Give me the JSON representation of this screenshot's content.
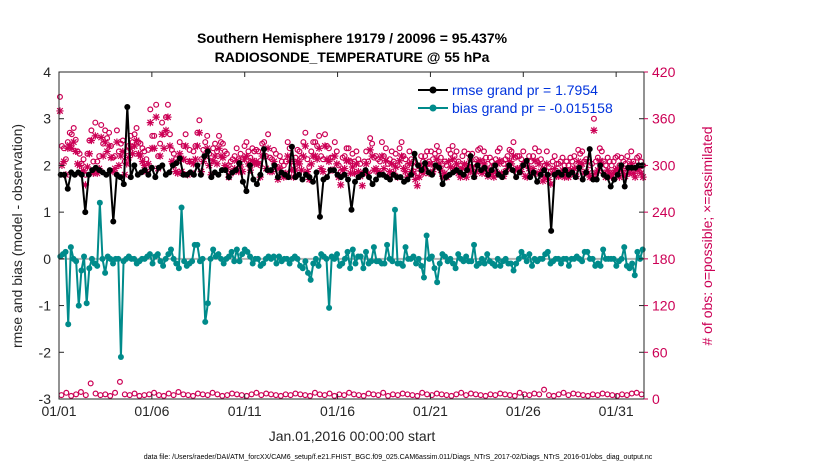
{
  "chart_data": {
    "type": "line",
    "title": "Southern Hemisphere 19179 / 20096 = 95.437%",
    "subtitle": "RADIOSONDE_TEMPERATURE @ 55 hPa",
    "xlabel": "Jan.01,2016 00:00:00 start",
    "ylabel": "rmse and bias (model - observation)",
    "ylabel_right": "# of obs: o=possible; ×=assimilated",
    "ylim": [
      -3,
      4
    ],
    "ylim_right": [
      0,
      420
    ],
    "xlim": [
      0,
      31.5
    ],
    "x_ticks": [
      0,
      5,
      10,
      15,
      20,
      25,
      30
    ],
    "x_tick_labels": [
      "01/01",
      "01/06",
      "01/11",
      "01/16",
      "01/21",
      "01/26",
      "01/31"
    ],
    "y_tick_labels": [
      "-3",
      "-2",
      "-1",
      "0",
      "1",
      "2",
      "3",
      "4"
    ],
    "y_right_tick_labels": [
      "0",
      "60",
      "120",
      "180",
      "240",
      "300",
      "360",
      "420"
    ],
    "legend_position": "top-right",
    "footer": "data file: /Users/raeder/DAI/ATM_forcXX/CAM6_setup/f.e21.FHIST_BGC.f09_025.CAM6assim.011/Diags_NTrS_2017-02/Diags_NTrS_2016-01/obs_diag_output.nc",
    "colors": {
      "rmse": "#000000",
      "bias": "#008b8b",
      "obs": "#cc0055",
      "zero": "#b3b3b3",
      "legend_text": "#0033dd"
    },
    "series": [
      {
        "name": "rmse grand pr = 1.7954",
        "axis": "left",
        "values": [
          1.8,
          1.8,
          1.5,
          1.85,
          1.8,
          1.85,
          1.8,
          1.0,
          1.8,
          1.9,
          1.95,
          1.9,
          1.85,
          1.8,
          1.9,
          0.8,
          1.8,
          1.75,
          1.6,
          3.25,
          1.75,
          2.0,
          1.8,
          1.85,
          1.9,
          1.8,
          1.95,
          1.75,
          1.95,
          2.0,
          1.8,
          1.85,
          2.0,
          2.05,
          2.15,
          1.8,
          1.8,
          1.85,
          1.8,
          2.0,
          1.8,
          2.2,
          2.3,
          1.75,
          1.85,
          1.8,
          1.9,
          1.9,
          1.75,
          1.85,
          1.9,
          2.05,
          1.65,
          1.45,
          2.0,
          1.7,
          1.6,
          1.8,
          2.35,
          1.9,
          1.9,
          2.0,
          1.75,
          1.85,
          1.8,
          1.75,
          2.4,
          1.75,
          1.8,
          1.7,
          1.8,
          1.75,
          1.65,
          1.85,
          0.9,
          1.7,
          1.75,
          1.9,
          1.9,
          1.8,
          1.75,
          1.8,
          1.7,
          1.05,
          1.65,
          1.75,
          1.8,
          1.9,
          1.75,
          1.6,
          1.7,
          1.8,
          1.8,
          1.75,
          1.7,
          1.8,
          1.75,
          1.75,
          1.65,
          1.7,
          1.8,
          2.25,
          2.0,
          1.9,
          2.05,
          1.85,
          1.8,
          2.0,
          1.95,
          1.6,
          1.75,
          1.8,
          1.85,
          1.9,
          1.85,
          1.8,
          1.9,
          2.2,
          1.75,
          2.0,
          1.9,
          1.95,
          1.8,
          1.9,
          2.0,
          1.8,
          1.75,
          1.85,
          2.0,
          1.9,
          1.75,
          1.85,
          2.0,
          2.1,
          1.75,
          1.85,
          1.65,
          1.8,
          1.9,
          1.8,
          0.6,
          1.8,
          1.85,
          1.8,
          1.9,
          1.8,
          1.85,
          1.75,
          1.95,
          1.7,
          1.85,
          2.35,
          1.7,
          1.7,
          2.0,
          1.8,
          1.75,
          1.55,
          1.7,
          1.8,
          2.0,
          1.55,
          1.95,
          1.95,
          1.95,
          2.0,
          2.0
        ]
      },
      {
        "name": "bias grand pr = -0.015158",
        "axis": "left",
        "values": [
          0.05,
          0.1,
          0.15,
          -1.4,
          0.25,
          0.0,
          -0.05,
          -1.0,
          -0.25,
          0.05,
          -0.95,
          -0.2,
          0.0,
          -0.1,
          -0.15,
          1.2,
          0.0,
          -0.3,
          0.05,
          0.0,
          -0.1,
          0.0,
          0.0,
          -2.1,
          -0.05,
          0.0,
          0.05,
          0.0,
          0.0,
          -0.1,
          -0.05,
          0.0,
          0.0,
          0.05,
          0.1,
          -0.1,
          0.05,
          0.1,
          -0.05,
          -0.15,
          0.0,
          0.1,
          0.2,
          0.0,
          -0.1,
          -0.2,
          1.1,
          -0.05,
          -0.15,
          -0.1,
          -0.05,
          0.3,
          0.3,
          -0.05,
          0.0,
          -1.35,
          -0.95,
          0.0,
          0.2,
          0.05,
          0.1,
          0.0,
          -0.1,
          0.0,
          0.05,
          0.15,
          -0.05,
          0.2,
          -0.05,
          0.1,
          0.2,
          0.15,
          0.05,
          -0.1,
          0.0,
          0.0,
          -0.15,
          -0.1,
          0.0,
          0.05,
          0.0,
          0.05,
          -0.1,
          0.05,
          -0.05,
          0.0,
          0.0,
          -0.1,
          0.0,
          0.05,
          0.0,
          -0.15,
          -0.2,
          -0.05,
          -0.3,
          -0.45,
          -0.1,
          0.0,
          -0.15,
          0.1,
          0.05,
          0.0,
          -1.05,
          0.05,
          0.0,
          0.1,
          -0.15,
          -0.1,
          0.0,
          0.15,
          -0.2,
          0.2,
          -0.1,
          0.05,
          0.05,
          -0.2,
          0.15,
          -0.1,
          -0.05,
          0.25,
          -0.05,
          -0.05,
          -0.1,
          -0.1,
          0.3,
          0.0,
          -0.05,
          1.05,
          -0.1,
          -0.1,
          -0.15,
          0.25,
          0.0,
          0.0,
          0.05,
          -0.1,
          0.0,
          -0.15,
          -0.4,
          0.5,
          0.0,
          0.05,
          -0.2,
          -0.5,
          -0.1,
          0.1,
          0.05,
          -0.05,
          0.0,
          -0.1,
          -0.2,
          0.1,
          0.0,
          -0.05,
          0.05,
          -0.05,
          -0.05,
          0.3,
          -0.15,
          -0.1,
          0.0,
          -0.1,
          0.1,
          -0.05,
          -0.1,
          -0.15,
          0.0,
          -0.15,
          -0.05,
          0.0,
          -0.1,
          -0.1,
          -0.25,
          -0.1,
          0.0,
          0.15,
          0.05,
          -0.05,
          0.1,
          -0.15,
          0.0,
          -0.05,
          0.0,
          0.0,
          0.1,
          0.15,
          -0.1,
          -0.05,
          0.0,
          0.0,
          -0.1,
          0.0,
          0.0,
          -0.15,
          0.0,
          0.0,
          0.05,
          0.0,
          -0.05,
          0.15,
          0.15,
          0.0,
          0.0,
          -0.15,
          -0.1,
          -0.15,
          0.2,
          0.0,
          0.0,
          0.0,
          0.0,
          -0.15,
          -0.05,
          0.0,
          0.25,
          -0.15,
          -0.2,
          -0.1,
          -0.35,
          0.15,
          0.0,
          0.2
        ]
      },
      {
        "name": "obs possible",
        "axis": "right",
        "marker": "o",
        "values": [
          388,
          325,
          322,
          308,
          330,
          342,
          340,
          348,
          333,
          318,
          315,
          302,
          308,
          288,
          315,
          332,
          345,
          305,
          355,
          305,
          312,
          352,
          328,
          345,
          335,
          342,
          325,
          310,
          312,
          345,
          318,
          328,
          332,
          305,
          318,
          325,
          338,
          330,
          340,
          348,
          330,
          328,
          322,
          318,
          308,
          320,
          372,
          338,
          338,
          378,
          312,
          328,
          355,
          340,
          362,
          378,
          340,
          320,
          315,
          308,
          305,
          330,
          308,
          325,
          340,
          305,
          320,
          305,
          318,
          325,
          342,
          358,
          308,
          320,
          330,
          338,
          315,
          305,
          322,
          328,
          318,
          338,
          330,
          328,
          318,
          315,
          300,
          305,
          308,
          312,
          322,
          308,
          315,
          308,
          325,
          330,
          318,
          310,
          322,
          318,
          320,
          318,
          300,
          328,
          330,
          312,
          340,
          310,
          308,
          320,
          315,
          298,
          312,
          305,
          300,
          305,
          330,
          322,
          310,
          300,
          310,
          320,
          318,
          310,
          330,
          342,
          308,
          298,
          318,
          330,
          330,
          325,
          338,
          312,
          308,
          340,
          325,
          322,
          310,
          310,
          330,
          318,
          300,
          292,
          310,
          312,
          322,
          322,
          305,
          315,
          305,
          318,
          308,
          302,
          290,
          305,
          318,
          305,
          335,
          328,
          310,
          312,
          308,
          305,
          330,
          312,
          322,
          302,
          308,
          318,
          305,
          315,
          300,
          322,
          330,
          312,
          308,
          300,
          318,
          308,
          305,
          298,
          290,
          300,
          312,
          305,
          312,
          318,
          305,
          318,
          308,
          315,
          325,
          318,
          310,
          302,
          305,
          300,
          320,
          315,
          325,
          312,
          318,
          305,
          300,
          312,
          318,
          300,
          315,
          308,
          315,
          302,
          308,
          320,
          322,
          305,
          318,
          310,
          302,
          310,
          305,
          300,
          308,
          318,
          322,
          305,
          302,
          308,
          312,
          320,
          318,
          330,
          310,
          312,
          312,
          308,
          318,
          302,
          300,
          312,
          305,
          312,
          322,
          305,
          318,
          308,
          295,
          300,
          318,
          298,
          292,
          305,
          312,
          302,
          302,
          305,
          310,
          300,
          305,
          300,
          310,
          305,
          312,
          302,
          320,
          315,
          318,
          305,
          308,
          305,
          300,
          302,
          360,
          305,
          310,
          322,
          318,
          305,
          300,
          310,
          305,
          300,
          305,
          310,
          312,
          300,
          310,
          305,
          302,
          312,
          305,
          318,
          305,
          300,
          310,
          312,
          305,
          300
        ]
      },
      {
        "name": "obs assimilated",
        "axis": "right",
        "marker": "x",
        "values": [
          370,
          300,
          305,
          288,
          322,
          326,
          322,
          330,
          318,
          302,
          300,
          290,
          293,
          275,
          298,
          315,
          332,
          290,
          338,
          290,
          296,
          336,
          312,
          330,
          318,
          325,
          310,
          292,
          296,
          330,
          300,
          312,
          318,
          288,
          302,
          310,
          322,
          315,
          325,
          332,
          315,
          312,
          305,
          300,
          292,
          302,
          355,
          322,
          322,
          362,
          296,
          312,
          340,
          322,
          345,
          362,
          325,
          305,
          300,
          292,
          290,
          315,
          292,
          308,
          325,
          288,
          305,
          290,
          302,
          308,
          325,
          342,
          292,
          305,
          312,
          322,
          300,
          288,
          306,
          312,
          302,
          322,
          312,
          310,
          300,
          298,
          285,
          290,
          292,
          296,
          306,
          292,
          298,
          292,
          308,
          312,
          302,
          294,
          306,
          302,
          305,
          302,
          285,
          312,
          312,
          296,
          322,
          292,
          292,
          305,
          298,
          282,
          296,
          290,
          285,
          290,
          312,
          305,
          294,
          285,
          294,
          305,
          302,
          294,
          312,
          325,
          292,
          282,
          302,
          312,
          312,
          308,
          322,
          296,
          292,
          325,
          308,
          305,
          294,
          294,
          312,
          302,
          285,
          275,
          294,
          296,
          306,
          306,
          290,
          298,
          290,
          302,
          292,
          286,
          274,
          290,
          302,
          290,
          320,
          312,
          294,
          296,
          292,
          290,
          312,
          296,
          306,
          286,
          292,
          302,
          290,
          298,
          285,
          306,
          312,
          296,
          292,
          285,
          302,
          292,
          290,
          282,
          274,
          285,
          296,
          290,
          296,
          302,
          290,
          302,
          292,
          298,
          308,
          302,
          294,
          286,
          290,
          285,
          305,
          298,
          308,
          296,
          302,
          290,
          285,
          296,
          302,
          285,
          298,
          292,
          298,
          286,
          292,
          305,
          306,
          290,
          302,
          294,
          286,
          294,
          290,
          285,
          292,
          302,
          306,
          290,
          286,
          292,
          296,
          305,
          302,
          312,
          294,
          296,
          296,
          292,
          302,
          286,
          285,
          296,
          290,
          296,
          306,
          290,
          302,
          292,
          280,
          285,
          302,
          282,
          276,
          290,
          296,
          286,
          286,
          290,
          294,
          285,
          290,
          285,
          294,
          290,
          296,
          286,
          305,
          298,
          302,
          290,
          292,
          290,
          285,
          286,
          345,
          290,
          294,
          306,
          302,
          290,
          285,
          294,
          290,
          285,
          290,
          294,
          296,
          285,
          294,
          290,
          286,
          296,
          290,
          302,
          290,
          285,
          294,
          296,
          290,
          285
        ]
      },
      {
        "name": "obs possible (bottom)",
        "axis": "right",
        "marker": "o",
        "values": [
          5,
          8,
          4,
          6,
          9,
          5,
          20,
          7,
          5,
          6,
          4,
          8,
          22,
          6,
          5,
          7,
          4,
          5,
          6,
          8,
          5,
          4,
          7,
          5,
          9,
          6,
          5,
          4,
          7,
          6,
          5,
          8,
          6,
          4,
          5,
          7,
          6,
          5,
          4,
          6,
          8,
          5,
          7,
          6,
          5,
          4,
          6,
          5,
          7,
          6,
          5,
          4,
          8,
          6,
          5,
          7,
          4,
          6,
          5,
          8,
          6,
          5,
          4,
          7,
          6,
          5,
          8,
          4,
          6,
          5,
          7,
          6,
          5,
          4,
          8,
          6,
          5,
          7,
          6,
          5,
          4,
          6,
          8,
          5,
          7,
          6,
          5,
          4,
          6,
          5,
          7,
          6,
          5,
          4,
          8,
          6,
          5,
          7,
          6,
          12,
          5,
          4,
          6,
          8,
          5,
          7,
          6,
          5,
          4,
          6,
          5,
          7,
          6,
          5,
          4,
          6,
          5,
          7,
          8,
          6
        ]
      }
    ]
  }
}
